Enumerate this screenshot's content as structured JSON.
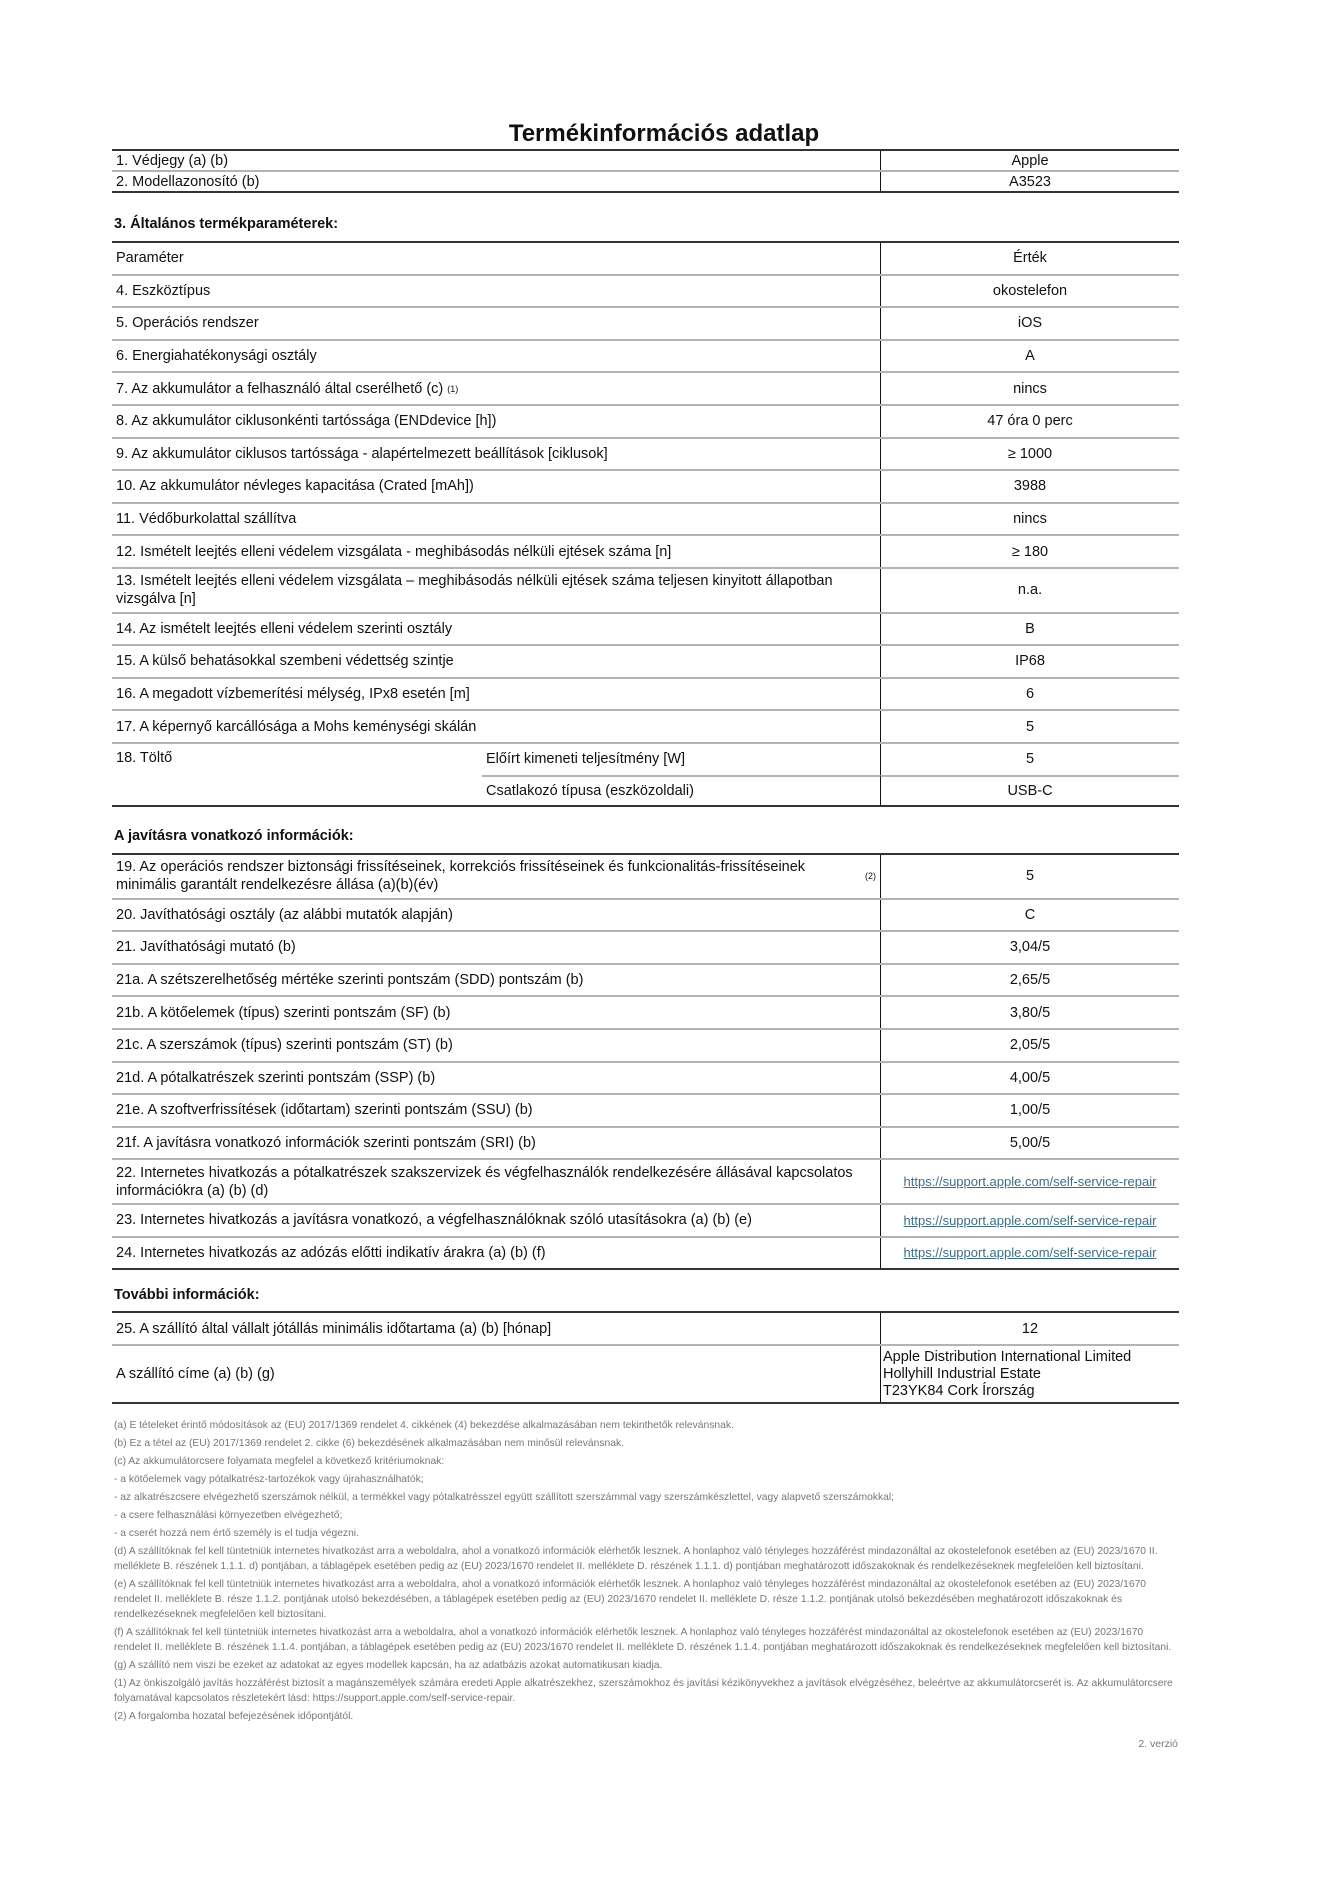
{
  "title": "Termékinformációs adatlap",
  "top_rows": [
    {
      "label": "1. Védjegy (a) (b)",
      "value": "Apple"
    },
    {
      "label": "2. Modellazonosító (b)",
      "value": "A3523"
    }
  ],
  "general": {
    "heading": "3. Általános termékparaméterek:",
    "rows": [
      {
        "label": "Paraméter",
        "value": "Érték"
      },
      {
        "label": "4. Eszköztípus",
        "value": "okostelefon"
      },
      {
        "label": "5. Operációs rendszer",
        "value": "iOS"
      },
      {
        "label": "6. Energiahatékonysági osztály",
        "value": "A"
      },
      {
        "label": "7. Az akkumulátor a felhasználó által cserélhető (c)",
        "sup": "(1)",
        "value": "nincs"
      },
      {
        "label": "8. Az akkumulátor ciklusonkénti tartóssága (ENDdevice [h])",
        "value": "47 óra 0 perc"
      },
      {
        "label": "9. Az akkumulátor ciklusos tartóssága - alapértelmezett beállítások [ciklusok]",
        "value": "≥ 1000"
      },
      {
        "label": "10. Az akkumulátor névleges kapacitása (Crated [mAh])",
        "value": "3988"
      },
      {
        "label": "11. Védőburkolattal szállítva",
        "value": "nincs"
      },
      {
        "label": "12. Ismételt leejtés elleni védelem vizsgálata - meghibásodás nélküli ejtések száma [n]",
        "value": "≥ 180"
      },
      {
        "label": "13. Ismételt leejtés elleni védelem vizsgálata – meghibásodás nélküli ejtések száma teljesen kinyitott állapotban vizsgálva [n]",
        "value": "n.a.",
        "tall": true
      },
      {
        "label": "14. Az ismételt leejtés elleni védelem szerinti osztály",
        "value": "B"
      },
      {
        "label": "15. A külső behatásokkal szembeni védettség szintje",
        "value": "IP68"
      },
      {
        "label": "16.  A megadott vízbemerítési mélység, IPx8 esetén [m]",
        "value": "6"
      },
      {
        "label": "17. A képernyő karcállósága a Mohs keménységi skálán",
        "value": "5"
      }
    ],
    "charger": {
      "label": "18. Töltő",
      "sub": [
        {
          "label": "Előírt kimeneti teljesítmény [W]",
          "value": "5"
        },
        {
          "label": "Csatlakozó típusa (eszközoldali)",
          "value": "USB-C"
        }
      ]
    }
  },
  "repair": {
    "heading": "A javításra vonatkozó információk:",
    "rows": [
      {
        "label": "19. Az operációs rendszer biztonsági frissítéseinek, korrekciós frissítéseinek és funkcionalitás-frissítéseinek minimális garantált rendelkezésre állása (a)(b)(év)",
        "sup": "(2)",
        "value": "5",
        "tall": true
      },
      {
        "label": "20. Javíthatósági osztály (az alábbi mutatók alapján)",
        "value": "C"
      },
      {
        "label": "21. Javíthatósági mutató (b)",
        "value": "3,04/5"
      },
      {
        "label": "21a. A szétszerelhetőség mértéke szerinti pontszám (SDD) pontszám (b)",
        "value": "2,65/5"
      },
      {
        "label": "21b. A kötőelemek (típus) szerinti pontszám (SF) (b)",
        "value": "3,80/5"
      },
      {
        "label": "21c. A szerszámok (típus) szerinti pontszám (ST) (b)",
        "value": "2,05/5"
      },
      {
        "label": "21d. A pótalkatrészek szerinti pontszám (SSP) (b)",
        "value": "4,00/5"
      },
      {
        "label": "21e. A szoftverfrissítések (időtartam) szerinti pontszám (SSU) (b)",
        "value": "1,00/5"
      },
      {
        "label": "21f. A javításra vonatkozó információk szerinti pontszám (SRI) (b)",
        "value": "5,00/5"
      },
      {
        "label": "22. Internetes hivatkozás a pótalkatrészek szakszervizek és végfelhasználók rendelkezésére állásával kapcsolatos információkra (a) (b) (d)",
        "value": "https://support.apple.com/self-service-repair",
        "link": true,
        "tall": true
      },
      {
        "label": "23. Internetes hivatkozás a javításra vonatkozó, a végfelhasználóknak szóló utasításokra (a) (b) (e)",
        "value": "https://support.apple.com/self-service-repair",
        "link": true
      },
      {
        "label": "24. Internetes hivatkozás az adózás előtti indikatív árakra (a) (b) (f)",
        "value": "https://support.apple.com/self-service-repair",
        "link": true
      }
    ]
  },
  "further": {
    "heading": "További információk:",
    "warranty": {
      "label": "25. A szállító által vállalt jótállás minimális időtartama (a) (b) [hónap]",
      "value": "12"
    },
    "supplier": {
      "label": "A szállító címe (a) (b) (g)",
      "lines": [
        "Apple Distribution International Limited",
        "Hollyhill Industrial Estate",
        "T23YK84 Cork Írország"
      ]
    }
  },
  "footnotes": [
    "(a) E tételeket érintő módosítások az (EU) 2017/1369 rendelet 4. cikkének (4) bekezdése alkalmazásában nem tekinthetők relevánsnak.",
    "(b) Ez a tétel az (EU) 2017/1369 rendelet 2. cikke (6) bekezdésének alkalmazásában nem minősül relevánsnak.",
    "(c) Az akkumulátorcsere folyamata megfelel a következő kritériumoknak:",
    "- a kötőelemek vagy pótalkatrész-tartozékok vagy újrahasználhatók;",
    "- az alkatrészcsere elvégezhető szerszámok nélkül, a termékkel vagy pótalkatrésszel együtt szállított szerszámmal vagy szerszámkészlettel, vagy alapvető szerszámokkal;",
    "- a csere felhasználási környezetben elvégezhető;",
    "- a cserét hozzá nem értő személy is el tudja végezni.",
    "(d) A szállítóknak fel kell tüntetniük internetes hivatkozást arra a weboldalra, ahol a vonatkozó információk elérhetők lesznek. A honlaphoz való tényleges hozzáférést mindazonáltal az okostelefonok esetében az (EU) 2023/1670 II. melléklete B. részének 1.1.1. d) pontjában, a táblagépek esetében pedig az (EU) 2023/1670 rendelet II. melléklete D. részének 1.1.1. d) pontjában meghatározott időszakoknak és rendelkezéseknek megfelelően kell biztosítani.",
    "(e) A szállítóknak fel kell tüntetniük internetes hivatkozást arra a weboldalra, ahol a vonatkozó információk elérhetők lesznek. A honlaphoz való tényleges hozzáférést mindazonáltal az okostelefonok esetében az (EU) 2023/1670 rendelet II. melléklete B. része 1.1.2. pontjának utolsó bekezdésében, a táblagépek esetében pedig az (EU) 2023/1670 rendelet II. melléklete D. része 1.1.2. pontjának utolsó bekezdésében meghatározott időszakoknak és rendelkezéseknek megfelelően kell biztosítani.",
    "(f) A szállítóknak fel kell tüntetniük internetes hivatkozást arra a weboldalra, ahol a vonatkozó információk elérhetők lesznek. A honlaphoz való tényleges hozzáférést mindazonáltal az okostelefonok esetében az (EU) 2023/1670 rendelet II. melléklete B. részének 1.1.4. pontjában, a táblagépek esetében pedig az (EU) 2023/1670 rendelet II. melléklete D. részének 1.1.4. pontjában meghatározott időszakoknak és rendelkezéseknek megfelelően kell biztosítani.",
    "(g) A szállító nem viszi be ezeket az adatokat az egyes modellek kapcsán, ha az adatbázis azokat automatikusan kiadja.",
    "(1) Az önkiszolgáló javítás hozzáférést biztosít a magánszemélyek számára eredeti Apple alkatrészekhez, szerszámokhoz és javítási kézikönyvekhez a javítások elvégzéséhez, beleértve az akkumulátorcserét is. Az akkumulátorcsere folyamatával kapcsolatos részletekért lásd: https://support.apple.com/self-service-repair.",
    "(2) A forgalomba hozatal befejezésének időpontjától."
  ],
  "version": "2. verzió"
}
